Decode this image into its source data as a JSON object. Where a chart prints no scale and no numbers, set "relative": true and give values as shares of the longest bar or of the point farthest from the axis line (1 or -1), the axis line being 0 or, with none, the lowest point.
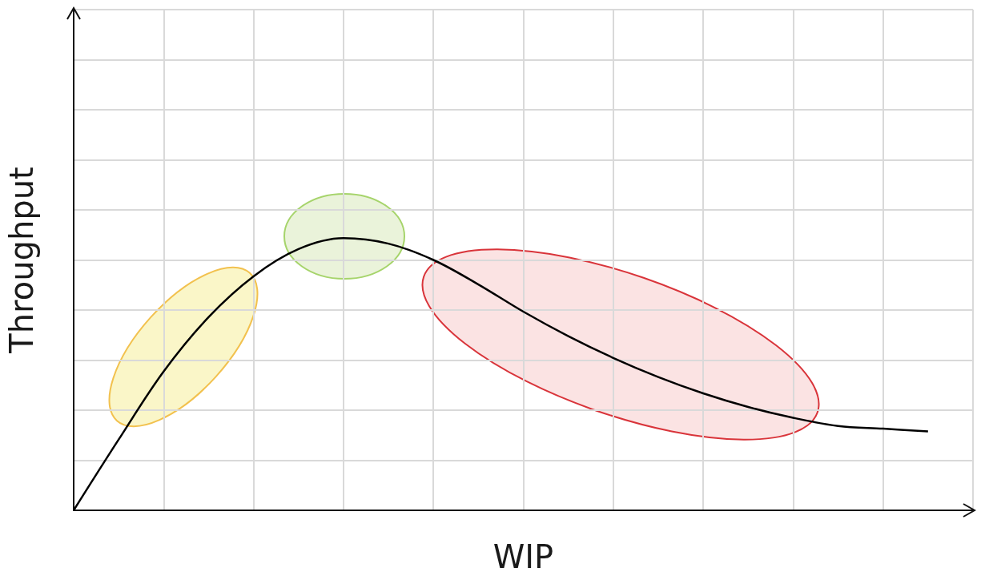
{
  "chart_data": {
    "type": "line",
    "xlabel": "WIP",
    "ylabel": "Throughput",
    "relative": true,
    "grid": true,
    "tick_labels": false,
    "marker": "none",
    "line_style": "solid",
    "categories": [
      null,
      null,
      null,
      null,
      null,
      null,
      null,
      null,
      null,
      null,
      null,
      null,
      null,
      null,
      null,
      null,
      null,
      null,
      null,
      null,
      null
    ],
    "series": [
      {
        "color": "#000000",
        "values": [
          0,
          0.26,
          0.51,
          0.71,
          0.86,
          0.96,
          1,
          0.98,
          0.92,
          0.83,
          0.73,
          0.64,
          0.56,
          0.49,
          0.43,
          0.38,
          0.34,
          0.31,
          0.3,
          0.29,
          null
        ]
      }
    ]
  }
}
